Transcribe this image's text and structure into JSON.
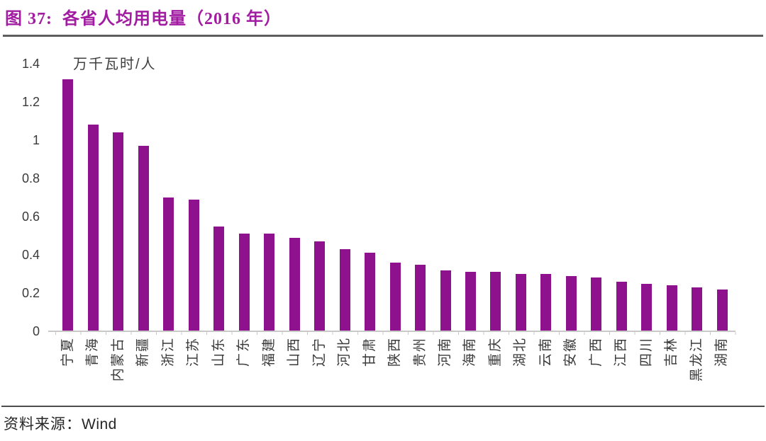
{
  "header": {
    "title": "图 37:  各省人均用电量（2016 年）"
  },
  "source": {
    "prefix": "资料来源：",
    "value": "Wind"
  },
  "colors": {
    "title": "#A21CA2",
    "bar": "#8E118E",
    "axis_line": "#C9C9C9",
    "label_text": "#3A3A3A",
    "divider": "#4D4D4D"
  },
  "chart_data": {
    "type": "bar",
    "title": "各省人均用电量（2016 年）",
    "ylabel": "万千瓦时/人",
    "xlabel": "",
    "categories": [
      "宁夏",
      "青海",
      "内蒙古",
      "新疆",
      "浙江",
      "江苏",
      "山东",
      "广东",
      "福建",
      "山西",
      "辽宁",
      "河北",
      "甘肃",
      "陕西",
      "贵州",
      "河南",
      "海南",
      "重庆",
      "湖北",
      "云南",
      "安徽",
      "广西",
      "江西",
      "四川",
      "吉林",
      "黑龙江",
      "湖南"
    ],
    "values": [
      1.32,
      1.08,
      1.04,
      0.97,
      0.7,
      0.69,
      0.55,
      0.51,
      0.51,
      0.49,
      0.47,
      0.43,
      0.41,
      0.36,
      0.35,
      0.32,
      0.31,
      0.31,
      0.3,
      0.3,
      0.29,
      0.28,
      0.26,
      0.25,
      0.24,
      0.23,
      0.22
    ],
    "ylim": [
      0,
      1.4
    ],
    "ytick_labels": [
      "0",
      "0.2",
      "0.4",
      "0.6",
      "0.8",
      "1",
      "1.2",
      "1.4"
    ],
    "grid": false,
    "legend": false,
    "bar_color": "#8E118E",
    "xlabel_rotation": -90
  }
}
